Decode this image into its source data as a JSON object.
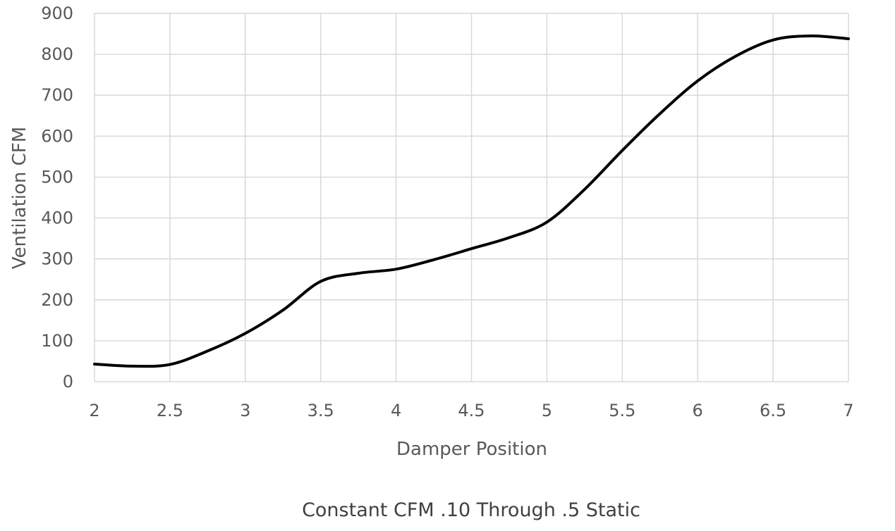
{
  "chart_data": {
    "type": "line",
    "title": "",
    "caption": "Constant CFM .10 Through .5 Static",
    "xlabel": "Damper Position",
    "ylabel": "Ventilation CFM",
    "xlim": [
      2,
      7
    ],
    "ylim": [
      0,
      900
    ],
    "x_ticks": [
      2,
      2.5,
      3,
      3.5,
      4,
      4.5,
      5,
      5.5,
      6,
      6.5,
      7
    ],
    "x_tick_labels": [
      "2",
      "2.5",
      "3",
      "3.5",
      "4",
      "4.5",
      "5",
      "5.5",
      "6",
      "6.5",
      "7"
    ],
    "y_ticks": [
      0,
      100,
      200,
      300,
      400,
      500,
      600,
      700,
      800,
      900
    ],
    "y_tick_labels": [
      "0",
      "100",
      "200",
      "300",
      "400",
      "500",
      "600",
      "700",
      "800",
      "900"
    ],
    "grid": true,
    "legend": "none",
    "line_color": "#000000",
    "grid_color": "#d9d9d9",
    "series": [
      {
        "x": [
          2,
          2.25,
          2.5,
          2.75,
          3,
          3.25,
          3.5,
          3.75,
          4,
          4.25,
          4.5,
          4.75,
          5,
          5.25,
          5.5,
          5.75,
          6,
          6.25,
          6.5,
          6.75,
          7
        ],
        "values": [
          43,
          38,
          42,
          75,
          118,
          175,
          245,
          265,
          275,
          298,
          325,
          352,
          390,
          470,
          565,
          655,
          735,
          795,
          835,
          845,
          838
        ]
      }
    ]
  }
}
